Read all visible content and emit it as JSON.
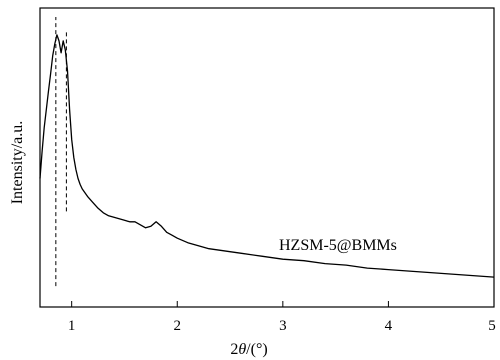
{
  "chart_data": {
    "type": "line",
    "title": "",
    "xlabel": "2θ/(°)",
    "ylabel": "Intensity/a.u.",
    "xlim": [
      0.7,
      5.0
    ],
    "ylim": [
      0,
      100
    ],
    "x_ticks": [
      1,
      2,
      3,
      4,
      5
    ],
    "y_ticks_shown": false,
    "grid": false,
    "annotation": "HZSM-5@BMMs",
    "reference_lines": [
      {
        "x": 0.85,
        "y_range": [
          7,
          97
        ],
        "style": "dashed"
      },
      {
        "x": 0.95,
        "y_range": [
          32,
          92
        ],
        "style": "dashed"
      }
    ],
    "series": [
      {
        "x": [
          0.7,
          0.72,
          0.74,
          0.76,
          0.78,
          0.8,
          0.82,
          0.84,
          0.86,
          0.88,
          0.9,
          0.92,
          0.94,
          0.96,
          0.98,
          1.0,
          1.02,
          1.04,
          1.06,
          1.08,
          1.1,
          1.15,
          1.2,
          1.25,
          1.3,
          1.35,
          1.4,
          1.45,
          1.5,
          1.55,
          1.6,
          1.65,
          1.7,
          1.75,
          1.8,
          1.85,
          1.9,
          1.95,
          2.0,
          2.1,
          2.2,
          2.3,
          2.4,
          2.5,
          2.6,
          2.8,
          3.0,
          3.2,
          3.4,
          3.6,
          3.8,
          4.0,
          4.2,
          4.4,
          4.6,
          4.8,
          5.0
        ],
        "y": [
          43,
          52,
          60,
          66,
          72,
          78,
          84,
          88,
          91,
          89,
          85,
          89,
          86,
          79,
          66,
          56,
          50,
          46,
          43,
          41,
          39.5,
          37,
          35,
          33,
          31.5,
          30.5,
          30,
          29.5,
          29,
          28.5,
          28.5,
          27.5,
          26.5,
          27,
          28.5,
          27,
          25,
          24,
          23,
          21.5,
          20.5,
          19.5,
          19,
          18.5,
          18,
          17,
          16,
          15.5,
          14.5,
          14,
          13,
          12.5,
          12,
          11.5,
          11,
          10.5,
          10
        ]
      }
    ]
  }
}
